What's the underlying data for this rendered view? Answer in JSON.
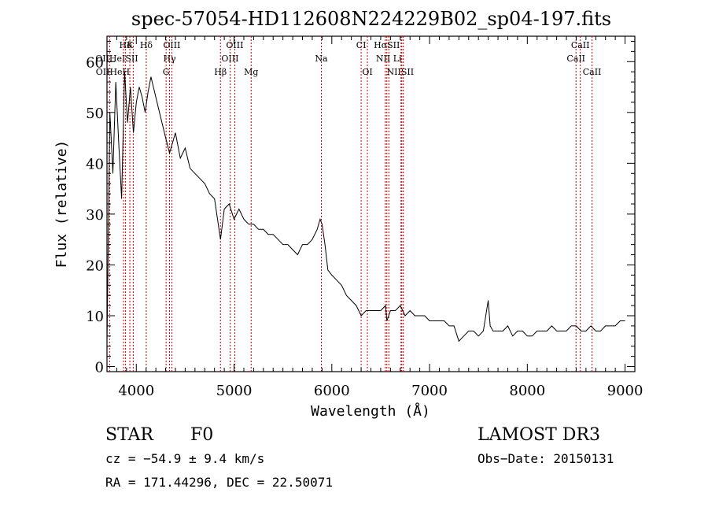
{
  "chart_data": {
    "type": "line",
    "title": "spec-57054-HD112608N224229B02_sp04-197.fits",
    "xlabel": "Wavelength (Å)",
    "ylabel": "Flux (relative)",
    "xlim": [
      3700,
      9100
    ],
    "ylim": [
      -1,
      65
    ],
    "x_ticks": [
      4000,
      5000,
      6000,
      7000,
      8000,
      9000
    ],
    "y_ticks": [
      0,
      10,
      20,
      30,
      40,
      50,
      60
    ],
    "grid": false,
    "series": [
      {
        "x": [
          3700,
          3730,
          3760,
          3790,
          3820,
          3850,
          3880,
          3910,
          3940,
          3970,
          4000,
          4030,
          4060,
          4090,
          4120,
          4150,
          4200,
          4250,
          4300,
          4340,
          4400,
          4450,
          4500,
          4550,
          4600,
          4650,
          4700,
          4750,
          4800,
          4861,
          4900,
          4950,
          5000,
          5050,
          5100,
          5150,
          5200,
          5250,
          5300,
          5350,
          5400,
          5450,
          5500,
          5550,
          5600,
          5650,
          5700,
          5750,
          5800,
          5850,
          5880,
          5900,
          5930,
          5960,
          6000,
          6050,
          6100,
          6150,
          6200,
          6250,
          6300,
          6350,
          6400,
          6450,
          6500,
          6550,
          6563,
          6600,
          6650,
          6700,
          6750,
          6800,
          6850,
          6900,
          6950,
          7000,
          7050,
          7100,
          7150,
          7200,
          7250,
          7300,
          7350,
          7400,
          7450,
          7500,
          7550,
          7600,
          7620,
          7650,
          7700,
          7750,
          7800,
          7850,
          7900,
          7950,
          8000,
          8050,
          8100,
          8150,
          8200,
          8250,
          8300,
          8350,
          8400,
          8450,
          8500,
          8550,
          8600,
          8650,
          8700,
          8750,
          8800,
          8850,
          8900,
          8950,
          9000
        ],
        "y": [
          5,
          50,
          38,
          56,
          44,
          33,
          58,
          48,
          55,
          46,
          52,
          55,
          53,
          50,
          54,
          57,
          53,
          49,
          45,
          42,
          46,
          41,
          43,
          39,
          38,
          37,
          36,
          34,
          33,
          25,
          31,
          32,
          29,
          31,
          29,
          28,
          28,
          27,
          27,
          26,
          26,
          25,
          24,
          24,
          23,
          22,
          24,
          24,
          25,
          27,
          29,
          28,
          24,
          19,
          18,
          17,
          16,
          14,
          13,
          12,
          10,
          11,
          11,
          11,
          11,
          12,
          9,
          11,
          11,
          12,
          10,
          11,
          10,
          10,
          10,
          9,
          9,
          9,
          9,
          8,
          8,
          5,
          6,
          7,
          7,
          6,
          7,
          13,
          8,
          7,
          7,
          7,
          8,
          6,
          7,
          7,
          6,
          6,
          7,
          7,
          7,
          8,
          7,
          7,
          7,
          8,
          8,
          7,
          7,
          8,
          7,
          7,
          8,
          8,
          8,
          9,
          9
        ]
      }
    ],
    "line_labels": [
      {
        "name": "Hδ",
        "wl": 3890,
        "row": 0
      },
      {
        "name": "K",
        "wl": 3934,
        "row": 0
      },
      {
        "name": "Hδ",
        "wl": 4102,
        "row": 0
      },
      {
        "name": "OIII",
        "wl": 4363,
        "row": 0
      },
      {
        "name": "OIII",
        "wl": 5007,
        "row": 0
      },
      {
        "name": "CI",
        "wl": 6300,
        "row": 0
      },
      {
        "name": "HαSII",
        "wl": 6563,
        "row": 0
      },
      {
        "name": "CaII",
        "wl": 8542,
        "row": 0
      },
      {
        "name": "OIIHeISII",
        "wl": 3800,
        "row": 1
      },
      {
        "name": "Hγ",
        "wl": 4340,
        "row": 1
      },
      {
        "name": "OIII",
        "wl": 4959,
        "row": 1
      },
      {
        "name": "Na",
        "wl": 5893,
        "row": 1
      },
      {
        "name": "NII Li",
        "wl": 6583,
        "row": 1
      },
      {
        "name": "CaII",
        "wl": 8498,
        "row": 1
      },
      {
        "name": "OIIHeH",
        "wl": 3760,
        "row": 2
      },
      {
        "name": "G",
        "wl": 4305,
        "row": 2
      },
      {
        "name": "Hβ",
        "wl": 4861,
        "row": 2
      },
      {
        "name": "Mg",
        "wl": 5175,
        "row": 2
      },
      {
        "name": "OI",
        "wl": 6364,
        "row": 2
      },
      {
        "name": "NIISII",
        "wl": 6700,
        "row": 2
      },
      {
        "name": "CaII",
        "wl": 8662,
        "row": 2
      }
    ],
    "line_marks": [
      3727,
      3869,
      3890,
      3934,
      3969,
      4102,
      4305,
      4340,
      4363,
      4861,
      4959,
      5007,
      5175,
      5893,
      6300,
      6364,
      6548,
      6563,
      6583,
      6708,
      6716,
      6731,
      8498,
      8542,
      8662
    ]
  },
  "info": {
    "object_class": "STAR",
    "subclass": "F0",
    "survey": "LAMOST DR3",
    "cz": "cz = −54.9 ± 9.4 km/s",
    "obs_date": "Obs−Date: 20150131",
    "coords": "RA = 171.44296, DEC =  22.50071"
  }
}
